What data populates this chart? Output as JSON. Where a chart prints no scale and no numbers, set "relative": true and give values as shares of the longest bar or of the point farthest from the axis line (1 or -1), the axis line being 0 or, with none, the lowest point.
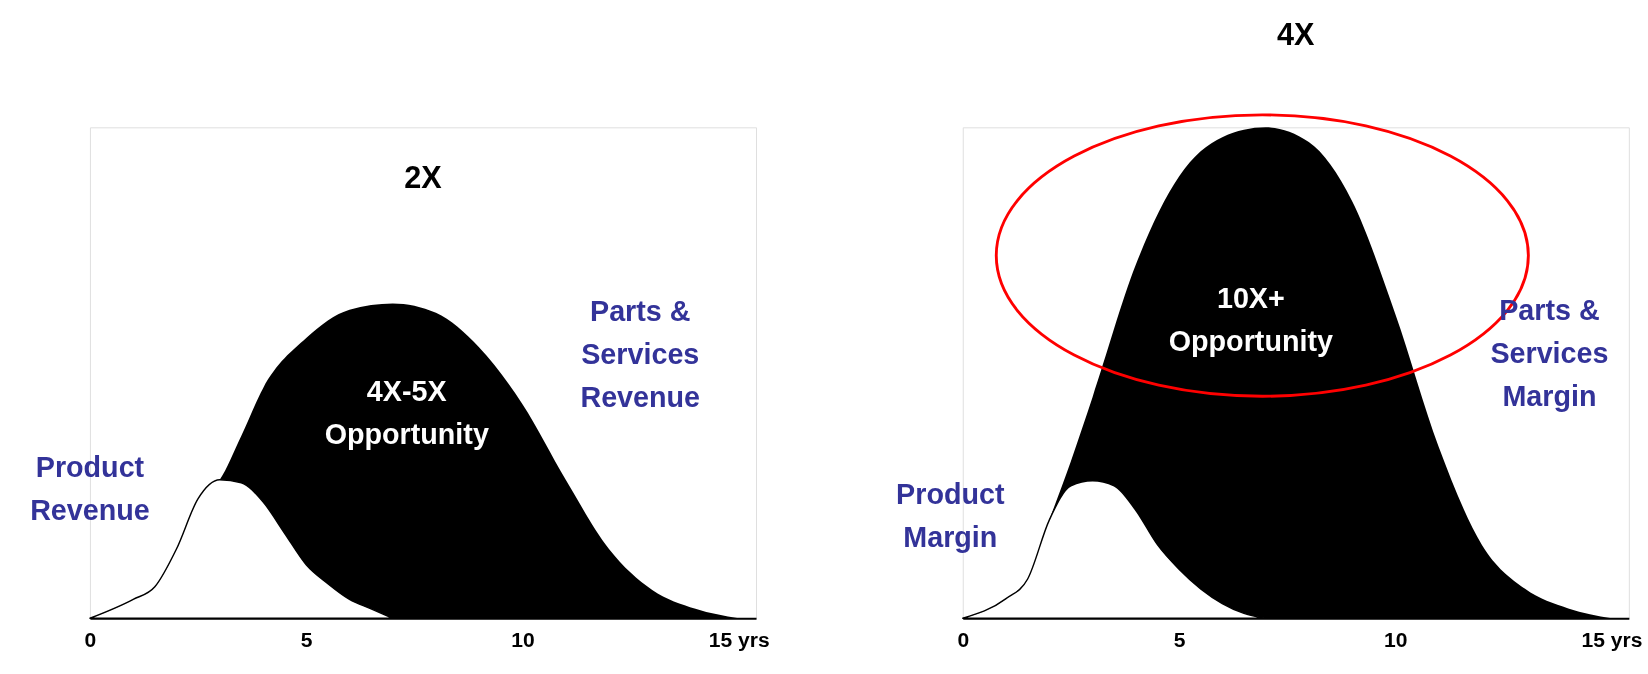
{
  "chart_data": [
    {
      "type": "area",
      "title": "2X",
      "relative": true,
      "xlim": [
        0,
        15.4
      ],
      "xticks": [
        0,
        5,
        10,
        {
          "value": 15,
          "label": "15 yrs"
        }
      ],
      "annotations": [
        "4X-5X\nOpportunity"
      ],
      "series": [
        {
          "name": "Parts &\nServices\nRevenue",
          "color": "#000000",
          "x": [
            0,
            1,
            1.5,
            2,
            2.5,
            3,
            3.5,
            4,
            5,
            6,
            7,
            8,
            9,
            10,
            11,
            12,
            13,
            14,
            15
          ],
          "values": [
            0,
            0.06,
            0.1,
            0.22,
            0.38,
            0.44,
            0.58,
            0.73,
            0.89,
            0.98,
            1.0,
            0.97,
            0.86,
            0.68,
            0.44,
            0.22,
            0.09,
            0.03,
            0
          ]
        },
        {
          "name": "Product\nRevenue",
          "color": "#ffffff",
          "x": [
            0,
            1,
            1.5,
            2,
            2.5,
            3,
            3.5,
            4,
            4.5,
            5,
            5.5,
            6,
            6.5,
            7
          ],
          "values": [
            0,
            0.06,
            0.1,
            0.22,
            0.38,
            0.44,
            0.43,
            0.37,
            0.27,
            0.17,
            0.11,
            0.06,
            0.03,
            0
          ]
        }
      ]
    },
    {
      "type": "area",
      "title": "4X",
      "relative": true,
      "xlim": [
        0,
        15.4
      ],
      "xticks": [
        0,
        5,
        10,
        {
          "value": 15,
          "label": "15 yrs"
        }
      ],
      "annotations": [
        "10X+\nOpportunity"
      ],
      "series": [
        {
          "name": "Parts &\nServices\nMargin",
          "color": "#000000",
          "x": [
            0,
            1,
            1.5,
            2,
            2.5,
            3,
            4,
            5,
            6,
            7,
            8,
            9,
            10,
            11,
            12,
            13,
            14,
            15
          ],
          "values": [
            0,
            0.04,
            0.08,
            0.2,
            0.32,
            0.45,
            0.72,
            0.9,
            0.98,
            1.0,
            0.97,
            0.85,
            0.62,
            0.35,
            0.15,
            0.06,
            0.02,
            0
          ]
        },
        {
          "name": "Product\nMargin",
          "color": "#ffffff",
          "x": [
            0,
            1,
            1.5,
            2,
            2.5,
            3,
            3.5,
            4,
            4.5,
            5,
            5.5,
            6,
            6.5,
            7
          ],
          "values": [
            0,
            0.04,
            0.08,
            0.2,
            0.27,
            0.28,
            0.27,
            0.22,
            0.15,
            0.1,
            0.06,
            0.03,
            0.01,
            0
          ]
        }
      ]
    }
  ]
}
